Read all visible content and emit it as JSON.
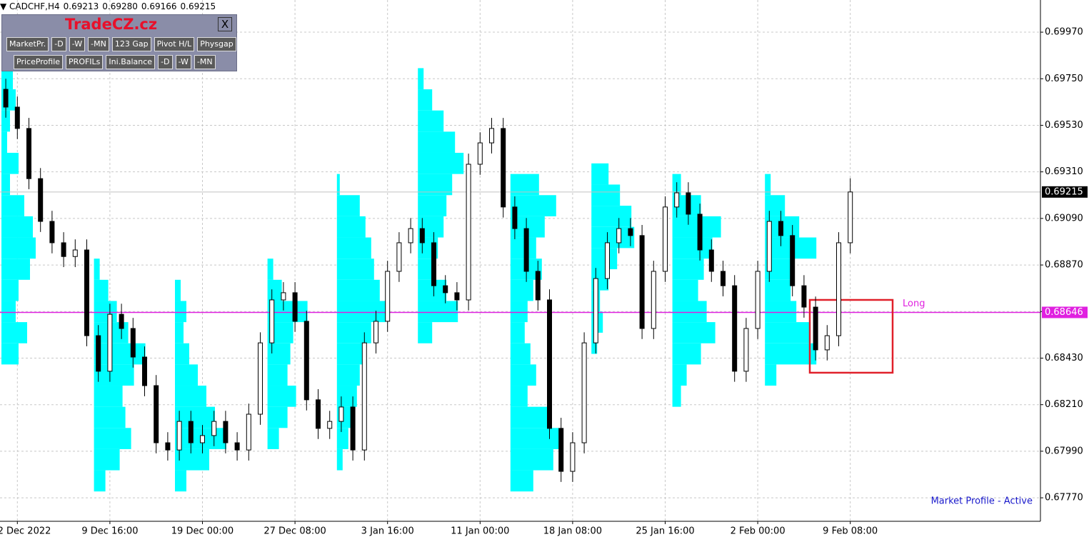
{
  "header": {
    "symbol": "CADCHF,H4",
    "quote": [
      "0.69213",
      "0.69280",
      "0.69166",
      "0.69215"
    ]
  },
  "panel": {
    "title": "TradeCZ.cz",
    "close": "X",
    "row1": [
      "MarketPr.",
      "-D",
      "-W",
      "-MN",
      "123 Gap",
      "Pivot H/L",
      "Physgap"
    ],
    "row2": [
      "PriceProfile",
      "PROFILs",
      "Ini.Balance",
      "-D",
      "-W",
      "-MN"
    ]
  },
  "chart_data": {
    "type": "candlestick",
    "categories": [
      null,
      "2 Dec 2022",
      null,
      null,
      null,
      null,
      null,
      null,
      null,
      "9 Dec 16:00",
      null,
      null,
      null,
      null,
      null,
      null,
      null,
      "19 Dec 00:00",
      null,
      null,
      null,
      null,
      null,
      null,
      null,
      "27 Dec 08:00",
      null,
      null,
      null,
      null,
      null,
      null,
      null,
      "3 Jan 16:00",
      null,
      null,
      null,
      null,
      null,
      null,
      null,
      "11 Jan 00:00",
      null,
      null,
      null,
      null,
      null,
      null,
      null,
      "18 Jan 08:00",
      null,
      null,
      null,
      null,
      null,
      null,
      null,
      "25 Jan 16:00",
      null,
      null,
      null,
      null,
      null,
      null,
      null,
      "2 Feb 00:00",
      null,
      null,
      null,
      null,
      null,
      null,
      null,
      "9 Feb 08:00"
    ],
    "open": [
      0.697,
      0.69616,
      0.69515,
      0.69278,
      0.69076,
      0.68975,
      0.6891,
      0.68941,
      0.68536,
      0.68368,
      0.68637,
      0.6857,
      0.68435,
      0.683,
      0.6803,
      0.67996,
      0.68131,
      0.6803,
      0.68064,
      0.68131,
      0.6803,
      0.67996,
      0.68165,
      0.68502,
      0.68705,
      0.68739,
      0.68604,
      0.68233,
      0.68098,
      0.68131,
      0.68199,
      0.67996,
      0.68502,
      0.68604,
      0.6884,
      0.68975,
      0.69042,
      0.68975,
      0.68772,
      0.68739,
      0.68705,
      0.69346,
      0.69447,
      0.69515,
      0.69144,
      0.69042,
      0.6884,
      0.68705,
      0.68098,
      0.67895,
      0.6803,
      0.68502,
      0.68806,
      0.68975,
      0.69042,
      0.69009,
      0.6857,
      0.6884,
      0.69144,
      0.69211,
      0.6911,
      0.68941,
      0.6884,
      0.68772,
      0.68368,
      0.6857,
      0.6884,
      0.69076,
      0.69009,
      0.68772,
      0.68671,
      0.68469,
      0.68536,
      0.68975
    ],
    "high": [
      0.6975,
      0.69666,
      0.69565,
      0.69328,
      0.69126,
      0.69025,
      0.68991,
      0.68991,
      0.68586,
      0.68687,
      0.68687,
      0.6862,
      0.68485,
      0.6835,
      0.6808,
      0.68181,
      0.68181,
      0.68114,
      0.68181,
      0.68181,
      0.6808,
      0.68215,
      0.68552,
      0.68755,
      0.68789,
      0.68789,
      0.68654,
      0.68283,
      0.68181,
      0.68249,
      0.68249,
      0.68552,
      0.68654,
      0.6889,
      0.69025,
      0.69092,
      0.69092,
      0.69025,
      0.68822,
      0.68789,
      0.69396,
      0.69497,
      0.69565,
      0.69565,
      0.69194,
      0.69092,
      0.6889,
      0.68755,
      0.68148,
      0.6808,
      0.68552,
      0.68856,
      0.69025,
      0.69092,
      0.69092,
      0.69059,
      0.6889,
      0.69194,
      0.69261,
      0.69261,
      0.6916,
      0.68991,
      0.6889,
      0.68822,
      0.6862,
      0.6889,
      0.69126,
      0.69126,
      0.69059,
      0.68822,
      0.68721,
      0.68586,
      0.69025,
      0.6928
    ],
    "low": [
      0.69566,
      0.69465,
      0.69228,
      0.69026,
      0.68925,
      0.6886,
      0.6886,
      0.68486,
      0.68318,
      0.68318,
      0.6852,
      0.68385,
      0.6825,
      0.6798,
      0.67946,
      0.67946,
      0.6798,
      0.6798,
      0.68014,
      0.6798,
      0.67946,
      0.67946,
      0.68115,
      0.68452,
      0.68655,
      0.68554,
      0.68183,
      0.68048,
      0.68048,
      0.68081,
      0.67946,
      0.67946,
      0.68452,
      0.68554,
      0.6879,
      0.68925,
      0.68925,
      0.68722,
      0.68689,
      0.68655,
      0.68655,
      0.69296,
      0.69397,
      0.69094,
      0.68992,
      0.6879,
      0.68655,
      0.68048,
      0.67845,
      0.67845,
      0.6798,
      0.68452,
      0.68756,
      0.68925,
      0.68959,
      0.6852,
      0.6852,
      0.6879,
      0.69094,
      0.6906,
      0.68891,
      0.6879,
      0.68722,
      0.68318,
      0.68318,
      0.6852,
      0.6879,
      0.68959,
      0.68722,
      0.68621,
      0.68419,
      0.68419,
      0.68486,
      0.68925
    ],
    "close": [
      0.69616,
      0.69515,
      0.69278,
      0.69076,
      0.68975,
      0.6891,
      0.68941,
      0.68536,
      0.68368,
      0.68637,
      0.6857,
      0.68435,
      0.683,
      0.6803,
      0.67996,
      0.68131,
      0.6803,
      0.68064,
      0.68131,
      0.6803,
      0.67996,
      0.68165,
      0.68502,
      0.68705,
      0.68739,
      0.68604,
      0.68233,
      0.68098,
      0.68131,
      0.68199,
      0.67996,
      0.68502,
      0.68604,
      0.6884,
      0.68975,
      0.69042,
      0.68975,
      0.68772,
      0.68739,
      0.68705,
      0.69346,
      0.69447,
      0.69515,
      0.69144,
      0.69042,
      0.6884,
      0.68705,
      0.68098,
      0.67895,
      0.6803,
      0.68502,
      0.68806,
      0.68975,
      0.69042,
      0.69009,
      0.6857,
      0.6884,
      0.69144,
      0.69211,
      0.6911,
      0.68941,
      0.6884,
      0.68772,
      0.68368,
      0.6857,
      0.6884,
      0.69076,
      0.69009,
      0.68772,
      0.68671,
      0.68469,
      0.68536,
      0.68975,
      0.69215
    ],
    "up_color": "#ffffff",
    "down_color": "#000000",
    "wick_color": "#000000",
    "ylim": [
      0.67659,
      0.70122
    ],
    "yticks": [
      {
        "value": 0.6997,
        "label": "0.69970"
      },
      {
        "value": 0.6975,
        "label": "0.69750"
      },
      {
        "value": 0.6953,
        "label": "0.69530"
      },
      {
        "value": 0.6931,
        "label": "0.69310"
      },
      {
        "value": 0.6909,
        "label": "0.69090"
      },
      {
        "value": 0.6887,
        "label": "0.68870"
      },
      {
        "value": 0.6865,
        "label": "0.68650"
      },
      {
        "value": 0.6843,
        "label": "0.68430"
      },
      {
        "value": 0.6821,
        "label": "0.68210"
      },
      {
        "value": 0.6799,
        "label": "0.67990"
      },
      {
        "value": 0.6777,
        "label": "0.67770"
      }
    ],
    "grid": true,
    "profile_color": "#00ffff",
    "profiles": [
      {
        "start": 0,
        "levels": [
          0.6975,
          0.6965,
          0.6955,
          0.6945,
          0.6935,
          0.6925,
          0.6915,
          0.6905,
          0.6895,
          0.6885,
          0.6875,
          0.6865,
          0.6855,
          0.6845
        ],
        "counts": [
          4,
          5,
          3,
          2,
          6,
          3,
          8,
          11,
          12,
          10,
          6,
          5,
          9,
          6
        ]
      },
      {
        "start": 8,
        "levels": [
          0.6885,
          0.6875,
          0.6865,
          0.6855,
          0.6845,
          0.6835,
          0.6825,
          0.6815,
          0.6805,
          0.6795,
          0.6785
        ],
        "counts": [
          2,
          5,
          8,
          12,
          18,
          14,
          10,
          11,
          13,
          9,
          4
        ]
      },
      {
        "start": 15,
        "levels": [
          0.6875,
          0.6865,
          0.6855,
          0.6845,
          0.6835,
          0.6825,
          0.6815,
          0.6805,
          0.6795,
          0.6785
        ],
        "counts": [
          2,
          4,
          3,
          5,
          8,
          11,
          14,
          18,
          12,
          4
        ]
      },
      {
        "start": 23,
        "levels": [
          0.6885,
          0.6875,
          0.6865,
          0.6855,
          0.6845,
          0.6835,
          0.6825,
          0.6815,
          0.6805
        ],
        "counts": [
          2,
          5,
          14,
          9,
          8,
          7,
          10,
          7,
          4
        ]
      },
      {
        "start": 29,
        "levels": [
          0.6925,
          0.6915,
          0.6905,
          0.6895,
          0.6885,
          0.6875,
          0.6865,
          0.6855,
          0.6845,
          0.6835,
          0.6825,
          0.6815,
          0.6805,
          0.6795
        ],
        "counts": [
          1,
          8,
          10,
          12,
          13,
          15,
          17,
          12,
          10,
          8,
          7,
          6,
          4,
          2
        ]
      },
      {
        "start": 36,
        "levels": [
          0.6975,
          0.6965,
          0.6955,
          0.6945,
          0.6935,
          0.6925,
          0.6915,
          0.6905,
          0.6895,
          0.6885,
          0.6875,
          0.6865,
          0.6855
        ],
        "counts": [
          2,
          5,
          9,
          13,
          16,
          12,
          10,
          9,
          7,
          6,
          10,
          14,
          5
        ]
      },
      {
        "start": 44,
        "levels": [
          0.6925,
          0.6915,
          0.6905,
          0.6895,
          0.6885,
          0.6875,
          0.6865,
          0.6855,
          0.6845,
          0.6835,
          0.6825,
          0.6815,
          0.6805,
          0.6795,
          0.6785
        ],
        "counts": [
          10,
          16,
          12,
          9,
          11,
          8,
          6,
          5,
          7,
          9,
          6,
          14,
          17,
          15,
          8
        ]
      },
      {
        "start": 51,
        "levels": [
          0.693,
          0.692,
          0.691,
          0.69,
          0.689,
          0.688,
          0.687,
          0.686,
          0.685
        ],
        "counts": [
          6,
          10,
          14,
          15,
          9,
          6,
          3,
          4,
          2
        ]
      },
      {
        "start": 58,
        "levels": [
          0.6925,
          0.6915,
          0.6905,
          0.6895,
          0.6885,
          0.6875,
          0.6865,
          0.6855,
          0.6845,
          0.6835,
          0.6825
        ],
        "counts": [
          3,
          10,
          17,
          14,
          11,
          9,
          12,
          15,
          10,
          5,
          3
        ]
      },
      {
        "start": 66,
        "levels": [
          0.6925,
          0.6915,
          0.6905,
          0.6895,
          0.6885,
          0.6875,
          0.6865,
          0.6855,
          0.6845,
          0.6835
        ],
        "counts": [
          2,
          7,
          12,
          18,
          10,
          9,
          11,
          16,
          18,
          4
        ]
      }
    ],
    "last_price": 0.69215,
    "last_price_color": "#000000",
    "level": {
      "value": 0.68646,
      "label": "Long",
      "color": "#e020e0"
    },
    "box": {
      "top": 0.68705,
      "bottom": 0.68361,
      "color": "#e0202a"
    },
    "status": "Market Profile - Active",
    "status_color": "#1a1acc"
  }
}
